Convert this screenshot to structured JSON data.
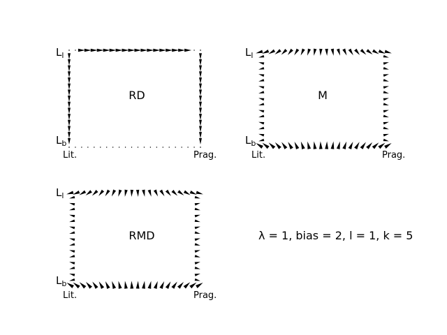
{
  "panels": [
    {
      "id": "rd",
      "title": "RD",
      "mode": "rd",
      "corner_top": "L",
      "corner_top_sub": "l",
      "corner_bottom": "L",
      "corner_bottom_sub": "b",
      "left_label": "Lit.",
      "right_label": "Prag."
    },
    {
      "id": "m",
      "title": "M",
      "mode": "full",
      "corner_top": "L",
      "corner_top_sub": "l",
      "corner_bottom": "L",
      "corner_bottom_sub": "b",
      "left_label": "Lit.",
      "right_label": "Prag."
    },
    {
      "id": "rmd",
      "title": "RMD",
      "mode": "full",
      "corner_top": "L",
      "corner_top_sub": "l",
      "corner_bottom": "L",
      "corner_bottom_sub": "b",
      "left_label": "Lit.",
      "right_label": "Prag."
    }
  ],
  "params_text": "λ = 1, bias = 2, l = 1, k = 5",
  "colors": {
    "arrow": "#000000",
    "text": "#000000",
    "background": "#ffffff"
  }
}
